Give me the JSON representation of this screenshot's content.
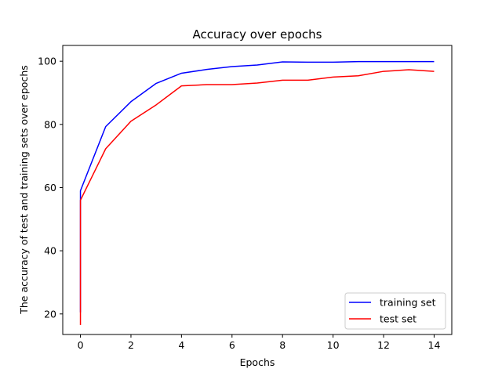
{
  "chart_data": {
    "type": "line",
    "title": "Accuracy over epochs",
    "xlabel": "Epochs",
    "ylabel": "The accuracy of test and training sets over epochs",
    "xlim": [
      -0.7,
      14.7
    ],
    "ylim": [
      13.5,
      105
    ],
    "xticks": [
      0,
      2,
      4,
      6,
      8,
      10,
      12,
      14
    ],
    "yticks": [
      20,
      40,
      60,
      80,
      100
    ],
    "legend_position": "lower-right",
    "grid": false,
    "series": [
      {
        "name": "training set",
        "color": "#0000ff",
        "x": [
          0,
          0,
          0,
          1,
          2,
          3,
          4,
          5,
          6,
          7,
          8,
          9,
          10,
          11,
          12,
          13,
          14
        ],
        "y": [
          20.5,
          58.0,
          59.0,
          79.3,
          87.2,
          93.0,
          96.2,
          97.4,
          98.3,
          98.8,
          99.8,
          99.7,
          99.7,
          99.9,
          99.9,
          99.9,
          99.9
        ]
      },
      {
        "name": "test set",
        "color": "#ff0000",
        "x": [
          0,
          0,
          0,
          1,
          2,
          3,
          4,
          5,
          6,
          7,
          8,
          9,
          10,
          11,
          12,
          13,
          14
        ],
        "y": [
          16.5,
          55.0,
          56.0,
          72.3,
          81.0,
          86.2,
          92.2,
          92.6,
          92.6,
          93.1,
          94.0,
          94.0,
          95.0,
          95.4,
          96.8,
          97.3,
          96.8
        ]
      }
    ]
  }
}
